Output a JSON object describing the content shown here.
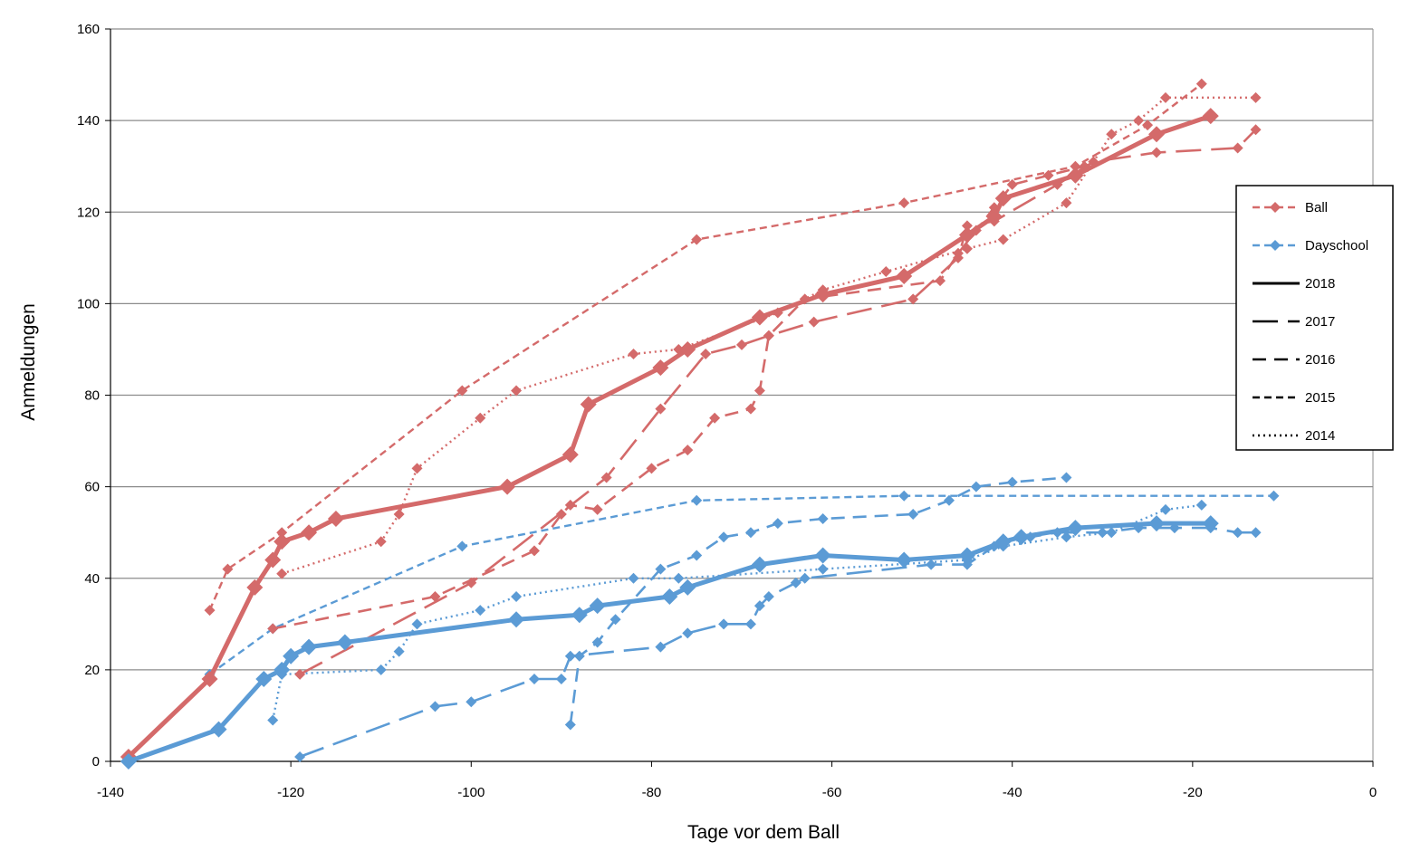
{
  "chart_data": {
    "type": "line",
    "title": "",
    "xlabel": "Tage vor dem Ball",
    "ylabel": "Anmeldungen",
    "xlim": [
      -140,
      0
    ],
    "ylim": [
      0,
      160
    ],
    "xticks": [
      -140,
      -120,
      -100,
      -80,
      -60,
      -40,
      -20,
      0
    ],
    "yticks": [
      0,
      20,
      40,
      60,
      80,
      100,
      120,
      140,
      160
    ],
    "grid": "horizontal",
    "legend_position": "right",
    "legend": [
      {
        "label": "Ball",
        "kind": "category",
        "color": "#d46a6a"
      },
      {
        "label": "Dayschool",
        "kind": "category",
        "color": "#5b9bd5"
      },
      {
        "label": "2018",
        "kind": "year",
        "style": "solid"
      },
      {
        "label": "2017",
        "kind": "year",
        "style": "longdash"
      },
      {
        "label": "2016",
        "kind": "year",
        "style": "dash"
      },
      {
        "label": "2015",
        "kind": "year",
        "style": "shortdash"
      },
      {
        "label": "2014",
        "kind": "year",
        "style": "dotted"
      }
    ],
    "colors": {
      "Ball": "#d46a6a",
      "Dayschool": "#5b9bd5"
    },
    "series": [
      {
        "name": "Ball 2018",
        "category": "Ball",
        "year": "2018",
        "points": [
          [
            -138,
            1
          ],
          [
            -129,
            18
          ],
          [
            -124,
            38
          ],
          [
            -122,
            44
          ],
          [
            -121,
            48
          ],
          [
            -118,
            50
          ],
          [
            -115,
            53
          ],
          [
            -96,
            60
          ],
          [
            -89,
            67
          ],
          [
            -87,
            78
          ],
          [
            -79,
            86
          ],
          [
            -76,
            90
          ],
          [
            -68,
            97
          ],
          [
            -61,
            102
          ],
          [
            -52,
            106
          ],
          [
            -45,
            115
          ],
          [
            -42,
            119
          ],
          [
            -41,
            123
          ],
          [
            -33,
            128
          ],
          [
            -24,
            137
          ],
          [
            -18,
            141
          ]
        ]
      },
      {
        "name": "Ball 2017",
        "category": "Ball",
        "year": "2017",
        "points": [
          [
            -119,
            19
          ],
          [
            -100,
            39
          ],
          [
            -85,
            62
          ],
          [
            -79,
            77
          ],
          [
            -74,
            89
          ],
          [
            -70,
            91
          ],
          [
            -67,
            93
          ],
          [
            -62,
            96
          ],
          [
            -51,
            101
          ],
          [
            -46,
            110
          ],
          [
            -45,
            117
          ],
          [
            -42,
            118
          ],
          [
            -35,
            126
          ],
          [
            -31,
            131
          ],
          [
            -24,
            133
          ],
          [
            -15,
            134
          ],
          [
            -13,
            138
          ]
        ]
      },
      {
        "name": "Ball 2016",
        "category": "Ball",
        "year": "2016",
        "points": [
          [
            -122,
            29
          ],
          [
            -104,
            36
          ],
          [
            -93,
            46
          ],
          [
            -90,
            54
          ],
          [
            -89,
            56
          ],
          [
            -86,
            55
          ],
          [
            -80,
            64
          ],
          [
            -76,
            68
          ],
          [
            -73,
            75
          ],
          [
            -69,
            77
          ],
          [
            -68,
            81
          ],
          [
            -67,
            93
          ],
          [
            -63,
            101
          ],
          [
            -48,
            105
          ],
          [
            -46,
            111
          ],
          [
            -44,
            116
          ],
          [
            -42,
            121
          ],
          [
            -40,
            126
          ],
          [
            -36,
            128
          ],
          [
            -32,
            130
          ]
        ]
      },
      {
        "name": "Ball 2015",
        "category": "Ball",
        "year": "2015",
        "points": [
          [
            -129,
            33
          ],
          [
            -127,
            42
          ],
          [
            -121,
            50
          ],
          [
            -101,
            81
          ],
          [
            -75,
            114
          ],
          [
            -52,
            122
          ],
          [
            -33,
            130
          ],
          [
            -25,
            139
          ],
          [
            -19,
            148
          ]
        ]
      },
      {
        "name": "Ball 2014",
        "category": "Ball",
        "year": "2014",
        "points": [
          [
            -121,
            41
          ],
          [
            -110,
            48
          ],
          [
            -108,
            54
          ],
          [
            -106,
            64
          ],
          [
            -99,
            75
          ],
          [
            -95,
            81
          ],
          [
            -82,
            89
          ],
          [
            -77,
            90
          ],
          [
            -66,
            98
          ],
          [
            -61,
            103
          ],
          [
            -54,
            107
          ],
          [
            -45,
            112
          ],
          [
            -41,
            114
          ],
          [
            -34,
            122
          ],
          [
            -29,
            137
          ],
          [
            -26,
            140
          ],
          [
            -23,
            145
          ],
          [
            -13,
            145
          ]
        ]
      },
      {
        "name": "Dayschool 2018",
        "category": "Dayschool",
        "year": "2018",
        "points": [
          [
            -138,
            0
          ],
          [
            -128,
            7
          ],
          [
            -123,
            18
          ],
          [
            -121,
            20
          ],
          [
            -120,
            23
          ],
          [
            -118,
            25
          ],
          [
            -114,
            26
          ],
          [
            -95,
            31
          ],
          [
            -88,
            32
          ],
          [
            -86,
            34
          ],
          [
            -78,
            36
          ],
          [
            -76,
            38
          ],
          [
            -68,
            43
          ],
          [
            -61,
            45
          ],
          [
            -52,
            44
          ],
          [
            -45,
            45
          ],
          [
            -41,
            48
          ],
          [
            -39,
            49
          ],
          [
            -33,
            51
          ],
          [
            -24,
            52
          ],
          [
            -18,
            52
          ]
        ]
      },
      {
        "name": "Dayschool 2017",
        "category": "Dayschool",
        "year": "2017",
        "points": [
          [
            -119,
            1
          ],
          [
            -104,
            12
          ],
          [
            -100,
            13
          ],
          [
            -93,
            18
          ],
          [
            -90,
            18
          ],
          [
            -89,
            23
          ],
          [
            -79,
            25
          ],
          [
            -76,
            28
          ],
          [
            -72,
            30
          ],
          [
            -69,
            30
          ],
          [
            -68,
            34
          ],
          [
            -67,
            36
          ],
          [
            -64,
            39
          ],
          [
            -63,
            40
          ],
          [
            -49,
            43
          ],
          [
            -45,
            43
          ],
          [
            -42,
            47
          ],
          [
            -38,
            49
          ],
          [
            -35,
            50
          ],
          [
            -30,
            50
          ],
          [
            -26,
            51
          ],
          [
            -22,
            51
          ],
          [
            -18,
            51
          ],
          [
            -15,
            50
          ],
          [
            -13,
            50
          ]
        ]
      },
      {
        "name": "Dayschool 2016",
        "category": "Dayschool",
        "year": "2016",
        "points": [
          [
            -89,
            8
          ],
          [
            -88,
            23
          ],
          [
            -86,
            26
          ],
          [
            -84,
            31
          ],
          [
            -79,
            42
          ],
          [
            -75,
            45
          ],
          [
            -72,
            49
          ],
          [
            -69,
            50
          ],
          [
            -66,
            52
          ],
          [
            -61,
            53
          ],
          [
            -51,
            54
          ],
          [
            -47,
            57
          ],
          [
            -44,
            60
          ],
          [
            -40,
            61
          ],
          [
            -34,
            62
          ]
        ]
      },
      {
        "name": "Dayschool 2015",
        "category": "Dayschool",
        "year": "2015",
        "points": [
          [
            -129,
            19
          ],
          [
            -122,
            29
          ],
          [
            -101,
            47
          ],
          [
            -75,
            57
          ],
          [
            -52,
            58
          ],
          [
            -11,
            58
          ]
        ]
      },
      {
        "name": "Dayschool 2014",
        "category": "Dayschool",
        "year": "2014",
        "points": [
          [
            -122,
            9
          ],
          [
            -121,
            19
          ],
          [
            -110,
            20
          ],
          [
            -108,
            24
          ],
          [
            -106,
            30
          ],
          [
            -99,
            33
          ],
          [
            -95,
            36
          ],
          [
            -82,
            40
          ],
          [
            -77,
            40
          ],
          [
            -61,
            42
          ],
          [
            -45,
            44
          ],
          [
            -41,
            47
          ],
          [
            -34,
            49
          ],
          [
            -29,
            50
          ],
          [
            -23,
            55
          ],
          [
            -19,
            56
          ]
        ]
      }
    ]
  }
}
